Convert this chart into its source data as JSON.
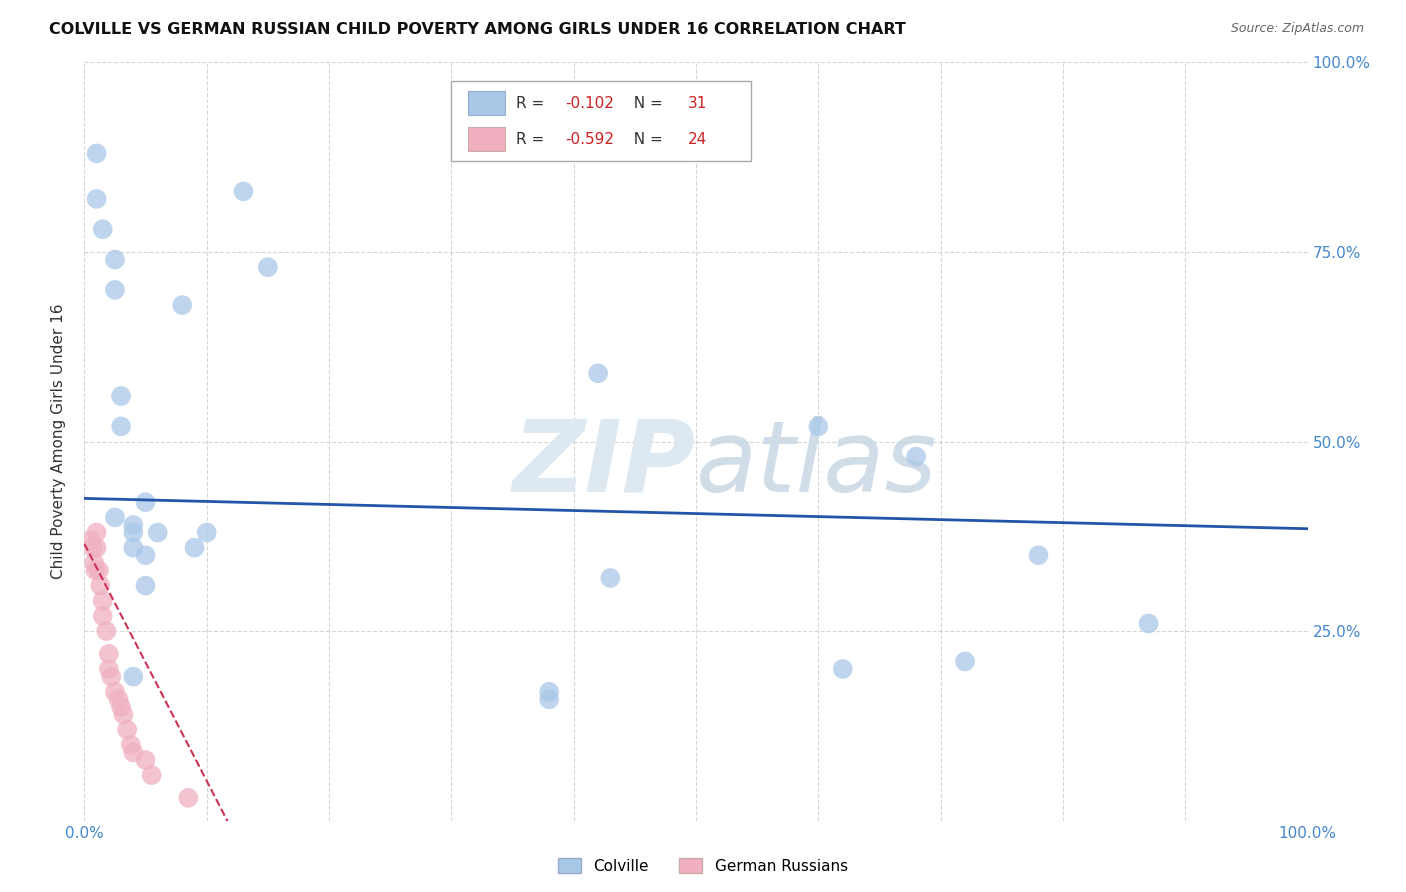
{
  "title": "COLVILLE VS GERMAN RUSSIAN CHILD POVERTY AMONG GIRLS UNDER 16 CORRELATION CHART",
  "source": "Source: ZipAtlas.com",
  "ylabel": "Child Poverty Among Girls Under 16",
  "xlim": [
    0.0,
    1.0
  ],
  "ylim": [
    0.0,
    1.0
  ],
  "xticks": [
    0.0,
    0.1,
    0.2,
    0.3,
    0.4,
    0.5,
    0.6,
    0.7,
    0.8,
    0.9,
    1.0
  ],
  "yticks": [
    0.0,
    0.25,
    0.5,
    0.75,
    1.0
  ],
  "xtick_labels": [
    "0.0%",
    "",
    "",
    "",
    "",
    "",
    "",
    "",
    "",
    "",
    "100.0%"
  ],
  "ytick_labels_right": [
    "",
    "25.0%",
    "50.0%",
    "75.0%",
    "100.0%"
  ],
  "colville_x": [
    0.01,
    0.01,
    0.015,
    0.025,
    0.025,
    0.03,
    0.03,
    0.04,
    0.04,
    0.04,
    0.05,
    0.05,
    0.06,
    0.08,
    0.09,
    0.1,
    0.13,
    0.15,
    0.38,
    0.38,
    0.42,
    0.43,
    0.6,
    0.62,
    0.68,
    0.72,
    0.78,
    0.87,
    0.025,
    0.04,
    0.05
  ],
  "colville_y": [
    0.88,
    0.82,
    0.78,
    0.74,
    0.7,
    0.52,
    0.56,
    0.39,
    0.38,
    0.36,
    0.42,
    0.35,
    0.38,
    0.68,
    0.36,
    0.38,
    0.83,
    0.73,
    0.16,
    0.17,
    0.59,
    0.32,
    0.52,
    0.2,
    0.48,
    0.21,
    0.35,
    0.26,
    0.4,
    0.19,
    0.31
  ],
  "german_x": [
    0.005,
    0.007,
    0.008,
    0.009,
    0.01,
    0.01,
    0.012,
    0.013,
    0.015,
    0.015,
    0.018,
    0.02,
    0.02,
    0.022,
    0.025,
    0.028,
    0.03,
    0.032,
    0.035,
    0.038,
    0.04,
    0.05,
    0.055,
    0.085
  ],
  "german_y": [
    0.37,
    0.36,
    0.34,
    0.33,
    0.38,
    0.36,
    0.33,
    0.31,
    0.29,
    0.27,
    0.25,
    0.22,
    0.2,
    0.19,
    0.17,
    0.16,
    0.15,
    0.14,
    0.12,
    0.1,
    0.09,
    0.08,
    0.06,
    0.03
  ],
  "colville_R": -0.102,
  "colville_N": 31,
  "german_R": -0.592,
  "german_N": 24,
  "colville_color": "#a8c8e8",
  "german_color": "#f0b0c0",
  "colville_line_color": "#2255aa",
  "german_line_color": "#cc3355",
  "background_color": "#ffffff",
  "grid_color": "#cccccc",
  "watermark_color": "#dde8f0",
  "title_fontsize": 11.5,
  "label_fontsize": 11,
  "tick_fontsize": 11,
  "legend_fontsize": 11
}
